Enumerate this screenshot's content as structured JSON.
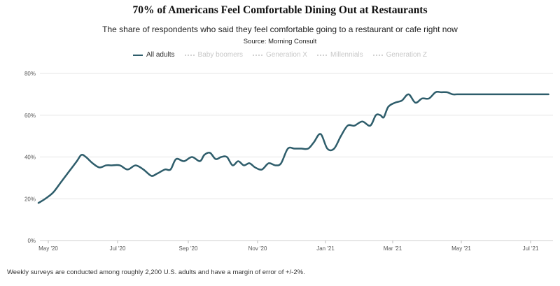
{
  "chart_data": {
    "type": "line",
    "title": "70% of Americans Feel Comfortable Dining Out at Restaurants",
    "subtitle": "The share of respondents who said they feel comfortable going to a restaurant or cafe right now",
    "source": "Source: Morning Consult",
    "footnote": "Weekly surveys are conducted among roughly 2,200 U.S. adults and have a margin of error of +/-2%.",
    "x_tick_labels": [
      "May '20",
      "Jul '20",
      "Sep '20",
      "Nov '20",
      "Jan '21",
      "Mar '21",
      "May '21",
      "Jul '21"
    ],
    "y_tick_labels": [
      "0%",
      "20%",
      "40%",
      "60%",
      "80%"
    ],
    "ylim": [
      0,
      80
    ],
    "y_ticks": [
      0,
      20,
      40,
      60,
      80
    ],
    "x_start": "2020-05-01",
    "x_end": "2021-07-31",
    "grid": true,
    "legend": [
      {
        "name": "All adults",
        "active": true
      },
      {
        "name": "Baby boomers",
        "active": false
      },
      {
        "name": "Generation X",
        "active": false
      },
      {
        "name": "Millennials",
        "active": false
      },
      {
        "name": "Generation Z",
        "active": false
      }
    ],
    "series": [
      {
        "name": "All adults",
        "color": "#2e5d6b",
        "x": [
          "2020-05-01",
          "2020-05-07",
          "2020-05-14",
          "2020-05-21",
          "2020-05-28",
          "2020-06-04",
          "2020-06-08",
          "2020-06-12",
          "2020-06-18",
          "2020-06-24",
          "2020-06-30",
          "2020-07-05",
          "2020-07-12",
          "2020-07-19",
          "2020-07-26",
          "2020-08-02",
          "2020-08-09",
          "2020-08-14",
          "2020-08-21",
          "2020-08-26",
          "2020-08-31",
          "2020-09-07",
          "2020-09-14",
          "2020-09-21",
          "2020-09-25",
          "2020-09-30",
          "2020-10-05",
          "2020-10-10",
          "2020-10-15",
          "2020-10-20",
          "2020-10-25",
          "2020-10-30",
          "2020-11-04",
          "2020-11-09",
          "2020-11-15",
          "2020-11-21",
          "2020-11-27",
          "2020-12-02",
          "2020-12-08",
          "2020-12-14",
          "2020-12-20",
          "2020-12-26",
          "2020-12-31",
          "2021-01-06",
          "2021-01-12",
          "2021-01-18",
          "2021-01-24",
          "2021-01-30",
          "2021-02-05",
          "2021-02-12",
          "2021-02-19",
          "2021-02-24",
          "2021-02-28",
          "2021-03-03",
          "2021-03-07",
          "2021-03-13",
          "2021-03-19",
          "2021-03-25",
          "2021-03-31",
          "2021-04-06",
          "2021-04-12",
          "2021-04-18",
          "2021-04-23",
          "2021-04-28",
          "2021-05-03",
          "2021-05-07",
          "2021-05-12",
          "2021-05-18",
          "2021-05-25",
          "2021-06-01",
          "2021-06-07",
          "2021-06-12",
          "2021-06-16",
          "2021-06-21",
          "2021-06-28",
          "2021-07-03",
          "2021-07-09",
          "2021-07-16",
          "2021-07-22",
          "2021-07-27"
        ],
        "values": [
          18,
          20,
          23,
          28,
          33,
          38,
          41,
          40,
          37,
          35,
          36,
          36,
          36,
          34,
          36,
          34,
          31,
          32,
          34,
          34,
          39,
          38,
          40,
          38,
          41,
          42,
          39,
          40,
          40,
          36,
          38,
          36,
          37,
          35,
          34,
          37,
          36,
          37,
          44,
          44,
          44,
          44,
          47,
          51,
          44,
          44,
          50,
          55,
          55,
          57,
          55,
          60,
          60,
          59,
          64,
          66,
          67,
          70,
          66,
          68,
          68,
          71,
          71,
          71,
          70,
          70,
          70,
          70,
          70,
          70,
          70,
          70,
          70,
          70,
          70,
          70,
          70,
          70,
          70,
          70
        ]
      }
    ]
  }
}
